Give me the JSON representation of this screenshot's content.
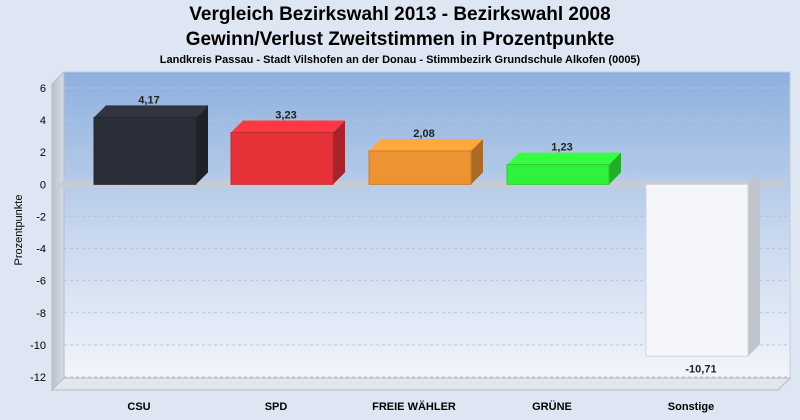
{
  "chart_data": {
    "type": "bar",
    "title": "Vergleich Bezirkswahl 2013 - Bezirkswahl 2008",
    "subtitle": "Gewinn/Verlust Zweitstimmen in Prozentpunkte",
    "subtitle2": "Landkreis Passau - Stadt Vilshofen an der Donau - Stimmbezirk Grundschule Alkofen (0005)",
    "ylabel": "Prozentpunkte",
    "xlabel": "",
    "ylim": [
      -12,
      6
    ],
    "yticks": [
      6,
      4,
      2,
      0,
      -2,
      -4,
      -6,
      -8,
      -10,
      -12
    ],
    "grid": true,
    "categories": [
      "CSU",
      "SPD",
      "FREIE WÄHLER",
      "GRÜNE",
      "Sonstige"
    ],
    "values": [
      4.17,
      3.23,
      2.08,
      1.23,
      -10.71
    ],
    "value_labels": [
      "4,17",
      "3,23",
      "2,08",
      "1,23",
      "-10,71"
    ],
    "colors": [
      "#2a2e38",
      "#e8323a",
      "#ee9333",
      "#2ff23a",
      "#f5f6fa"
    ]
  }
}
